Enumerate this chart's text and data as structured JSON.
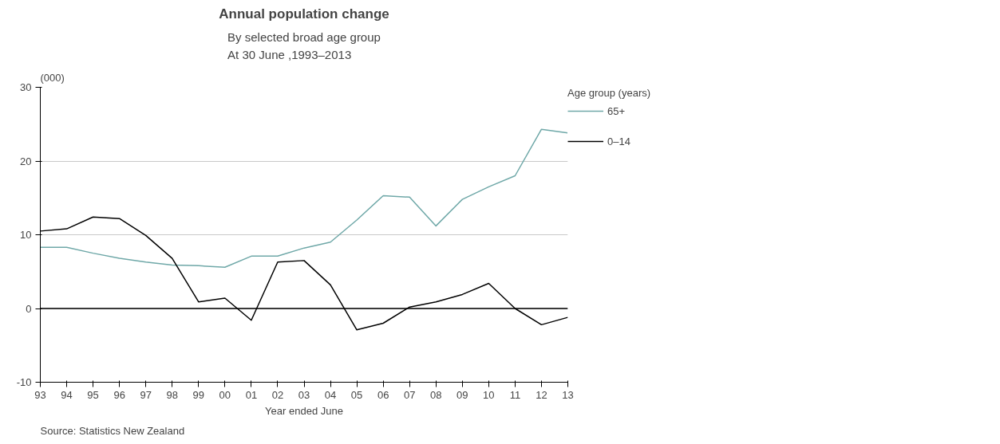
{
  "chart_data": {
    "type": "line",
    "title": "Annual population change",
    "subtitle": "By selected broad age group\nAt 30 June ,1993–2013",
    "xlabel": "Year ended June",
    "ylabel": "(000)",
    "legend_title": "Age group (years)",
    "categories": [
      "93",
      "94",
      "95",
      "96",
      "97",
      "98",
      "99",
      "00",
      "01",
      "02",
      "03",
      "04",
      "05",
      "06",
      "07",
      "08",
      "09",
      "10",
      "11",
      "12",
      "13"
    ],
    "series": [
      {
        "name": "65+",
        "color": "#6fa8a8",
        "values": [
          8.3,
          8.3,
          7.5,
          6.8,
          6.3,
          5.9,
          5.8,
          5.6,
          7.1,
          7.1,
          8.2,
          9.0,
          12.0,
          15.3,
          15.1,
          11.2,
          14.8,
          16.5,
          18.0,
          24.3,
          23.8
        ]
      },
      {
        "name": "0–14",
        "color": "#000000",
        "values": [
          10.5,
          10.8,
          12.4,
          12.2,
          9.9,
          6.8,
          0.9,
          1.4,
          -1.6,
          6.3,
          6.5,
          3.2,
          -2.9,
          -2.0,
          0.2,
          0.9,
          1.9,
          3.4,
          0.0,
          -2.2,
          -1.2
        ]
      }
    ],
    "ylim": [
      -10,
      30
    ],
    "yticks": [
      -10,
      0,
      10,
      20,
      30
    ],
    "grid": "y",
    "legend": "right",
    "marker": "none",
    "line_style": "solid",
    "ref_lines": [
      {
        "axis": "y",
        "value": 0,
        "color": "#000000"
      }
    ],
    "annotations": [
      "Source: Statistics New Zealand"
    ]
  }
}
